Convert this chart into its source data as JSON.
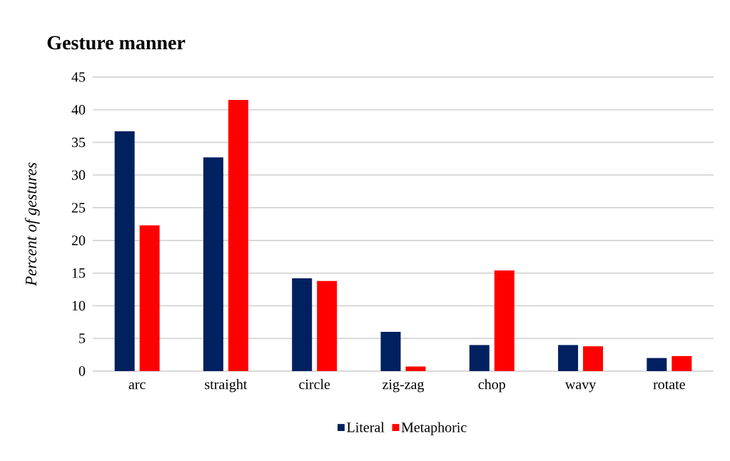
{
  "chart_data": {
    "type": "bar",
    "title": "Gesture manner",
    "ylabel": "Percent of gestures",
    "categories": [
      "arc",
      "straight",
      "circle",
      "zig-zag",
      "chop",
      "wavy",
      "rotate"
    ],
    "series": [
      {
        "name": "Literal",
        "color": "#002060",
        "values": [
          36.7,
          32.7,
          14.2,
          6.0,
          4.0,
          4.0,
          2.0
        ]
      },
      {
        "name": "Metaphoric",
        "color": "#ff0000",
        "values": [
          22.3,
          41.5,
          13.8,
          0.7,
          15.4,
          3.8,
          2.3
        ]
      }
    ],
    "ylim": [
      0,
      45
    ],
    "yticks": [
      0,
      5,
      10,
      15,
      20,
      25,
      30,
      35,
      40,
      45
    ],
    "grid": "y",
    "legend": "bottom"
  }
}
